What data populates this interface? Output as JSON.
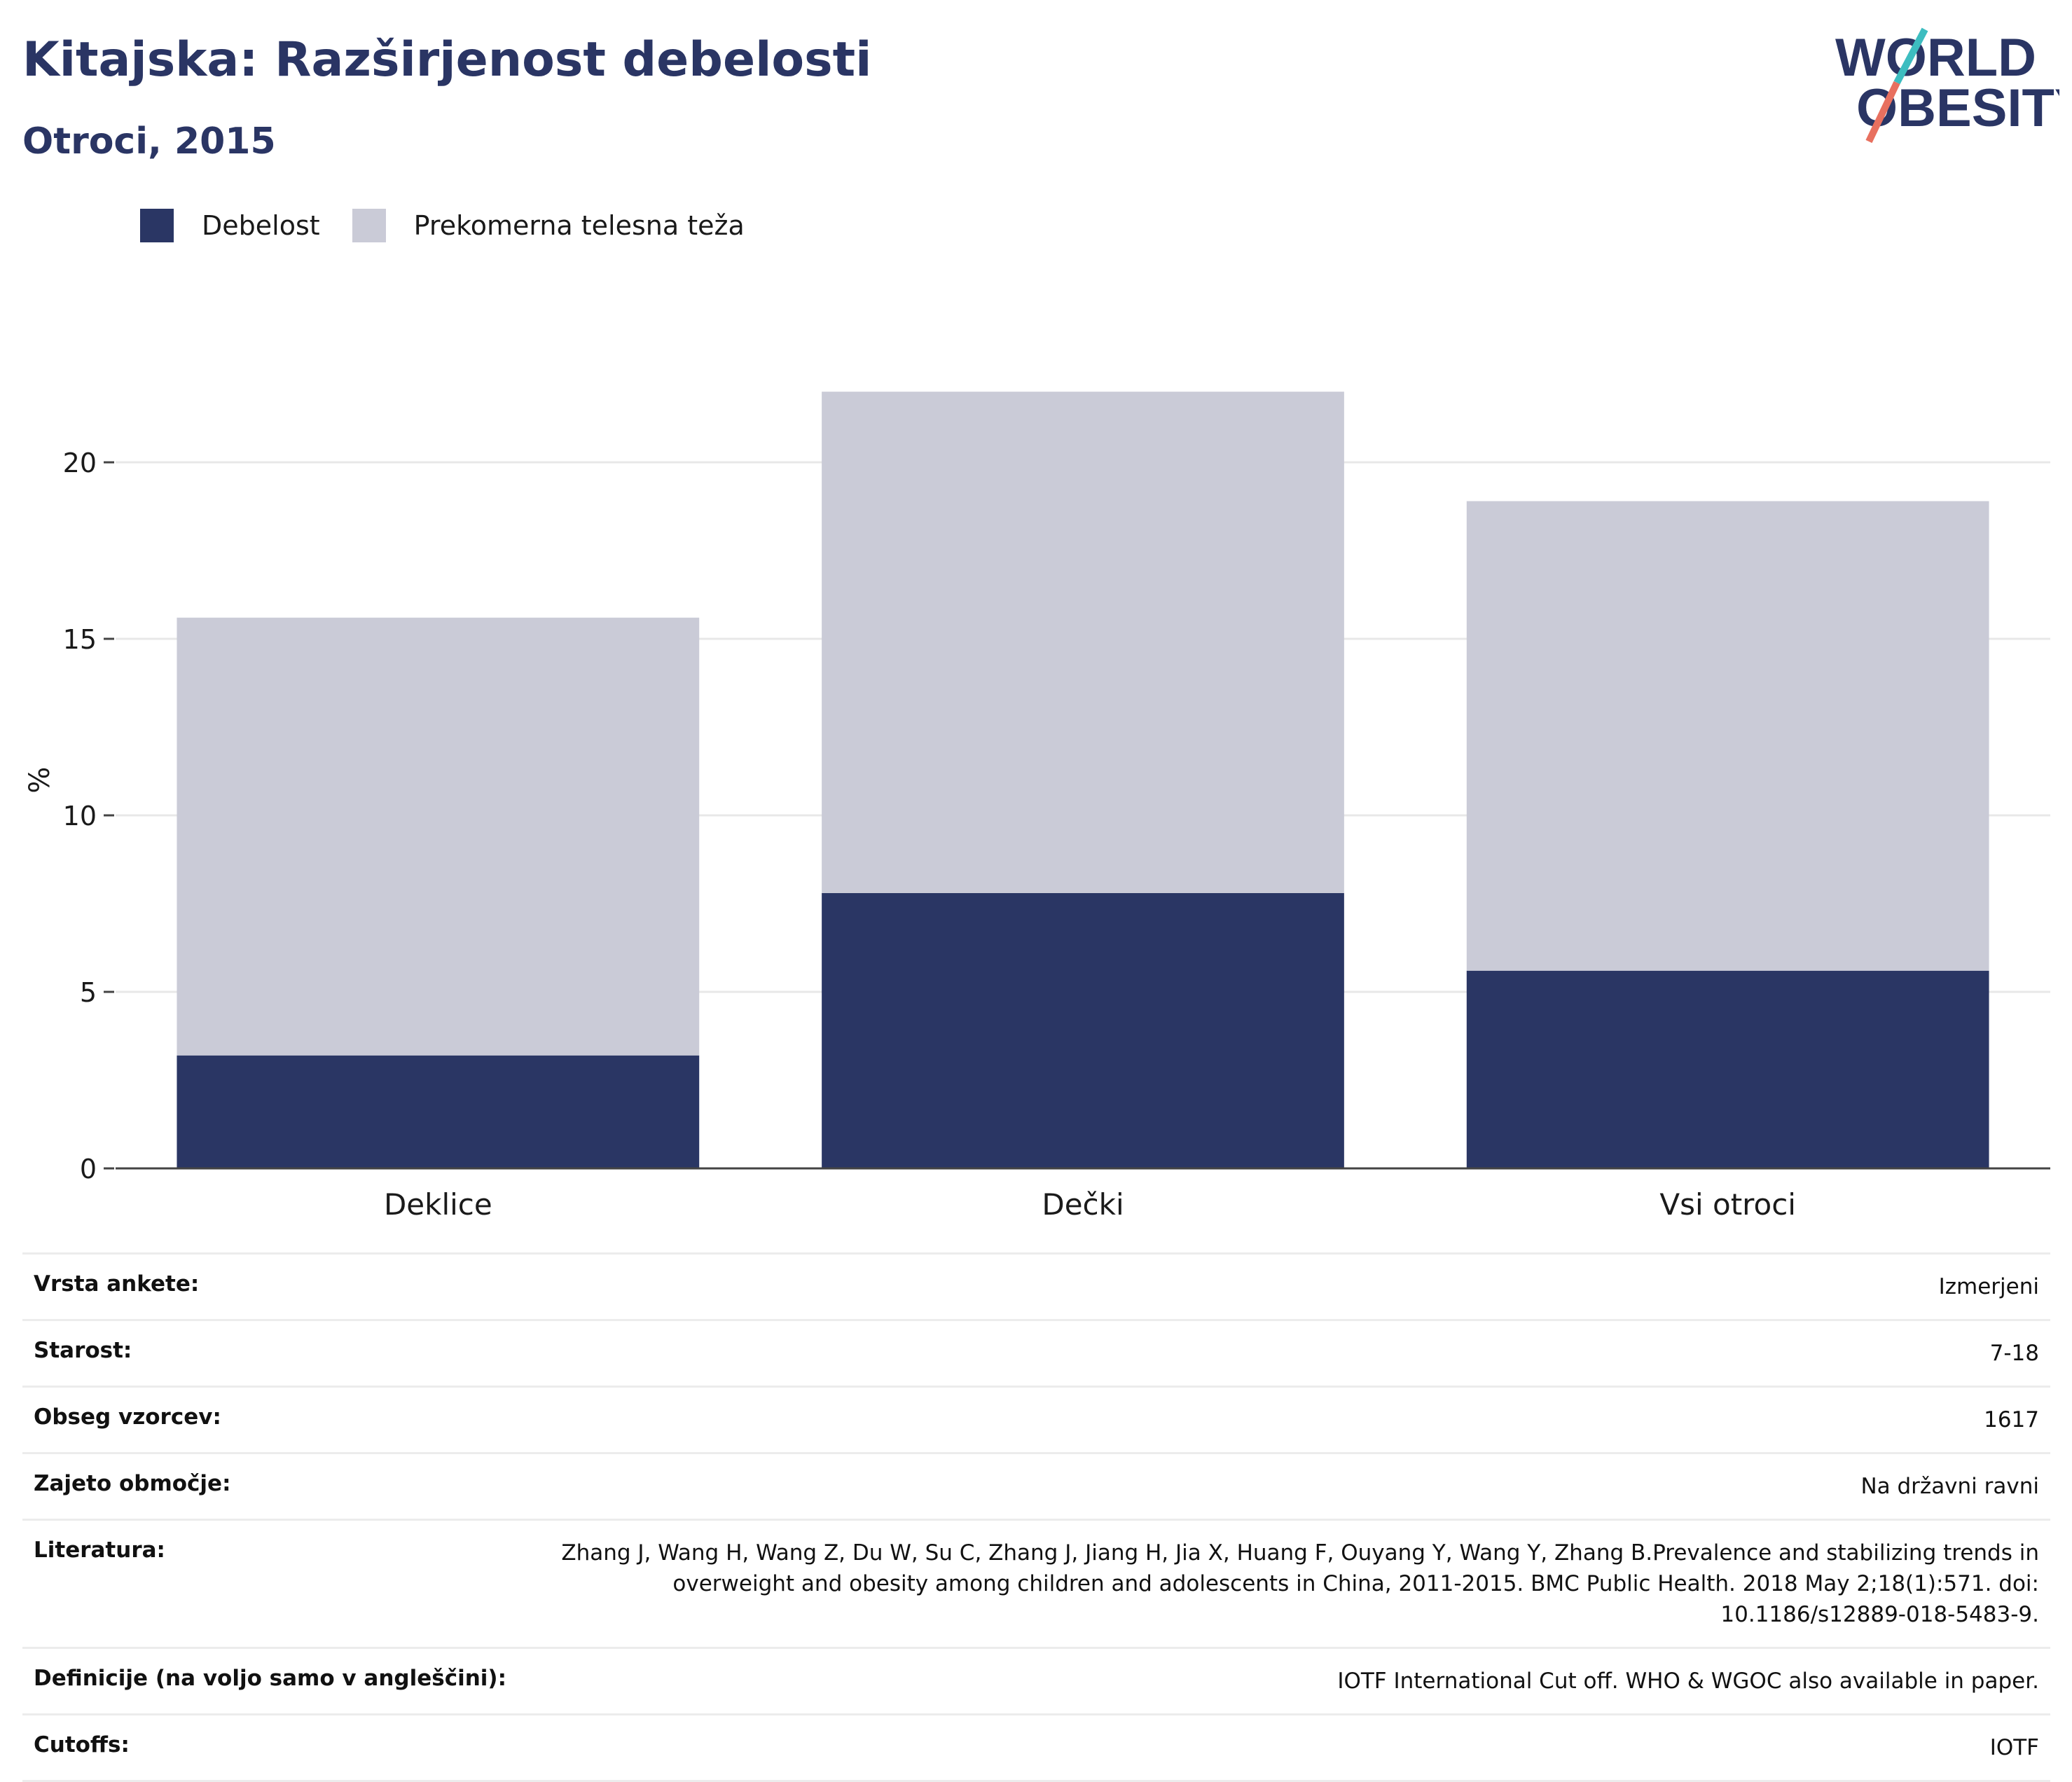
{
  "header": {
    "title": "Kitajska: Razširjenost debelosti",
    "subtitle": "Otroci, 2015"
  },
  "logo": {
    "line1": "WORLD",
    "line2": "OBESITY"
  },
  "legend": [
    {
      "label": "Debelost",
      "color": "#2a3664"
    },
    {
      "label": "Prekomerna telesna teža",
      "color": "#cacbd7"
    }
  ],
  "chart_data": {
    "type": "bar",
    "stacked": true,
    "categories": [
      "Deklice",
      "Dečki",
      "Vsi otroci"
    ],
    "series": [
      {
        "name": "Debelost",
        "values": [
          3.2,
          7.8,
          5.6
        ],
        "color": "#2a3664"
      },
      {
        "name": "Prekomerna telesna teža",
        "values": [
          12.4,
          14.2,
          13.3
        ],
        "color": "#cacbd7"
      }
    ],
    "ylabel": "%",
    "ylim": [
      0,
      22
    ],
    "yticks": [
      0,
      5,
      10,
      15,
      20
    ],
    "grid": true,
    "legend_position": "top-left"
  },
  "info_table": [
    {
      "label": "Vrsta ankete:",
      "value": "Izmerjeni"
    },
    {
      "label": "Starost:",
      "value": "7-18"
    },
    {
      "label": "Obseg vzorcev:",
      "value": "1617"
    },
    {
      "label": "Zajeto območje:",
      "value": "Na državni ravni"
    },
    {
      "label": "Literatura:",
      "value": "Zhang J, Wang H, Wang Z, Du W, Su C, Zhang J, Jiang H, Jia X, Huang F, Ouyang Y, Wang Y, Zhang B.Prevalence and stabilizing trends in overweight and obesity among children and adolescents in China, 2011-2015. BMC Public Health. 2018 May 2;18(1):571. doi: 10.1186/s12889-018-5483-9."
    },
    {
      "label": "Definicije (na voljo samo v angleščini):",
      "value": "IOTF International Cut off. WHO & WGOC also available in paper."
    },
    {
      "label": "Cutoffs:",
      "value": "IOTF"
    }
  ]
}
